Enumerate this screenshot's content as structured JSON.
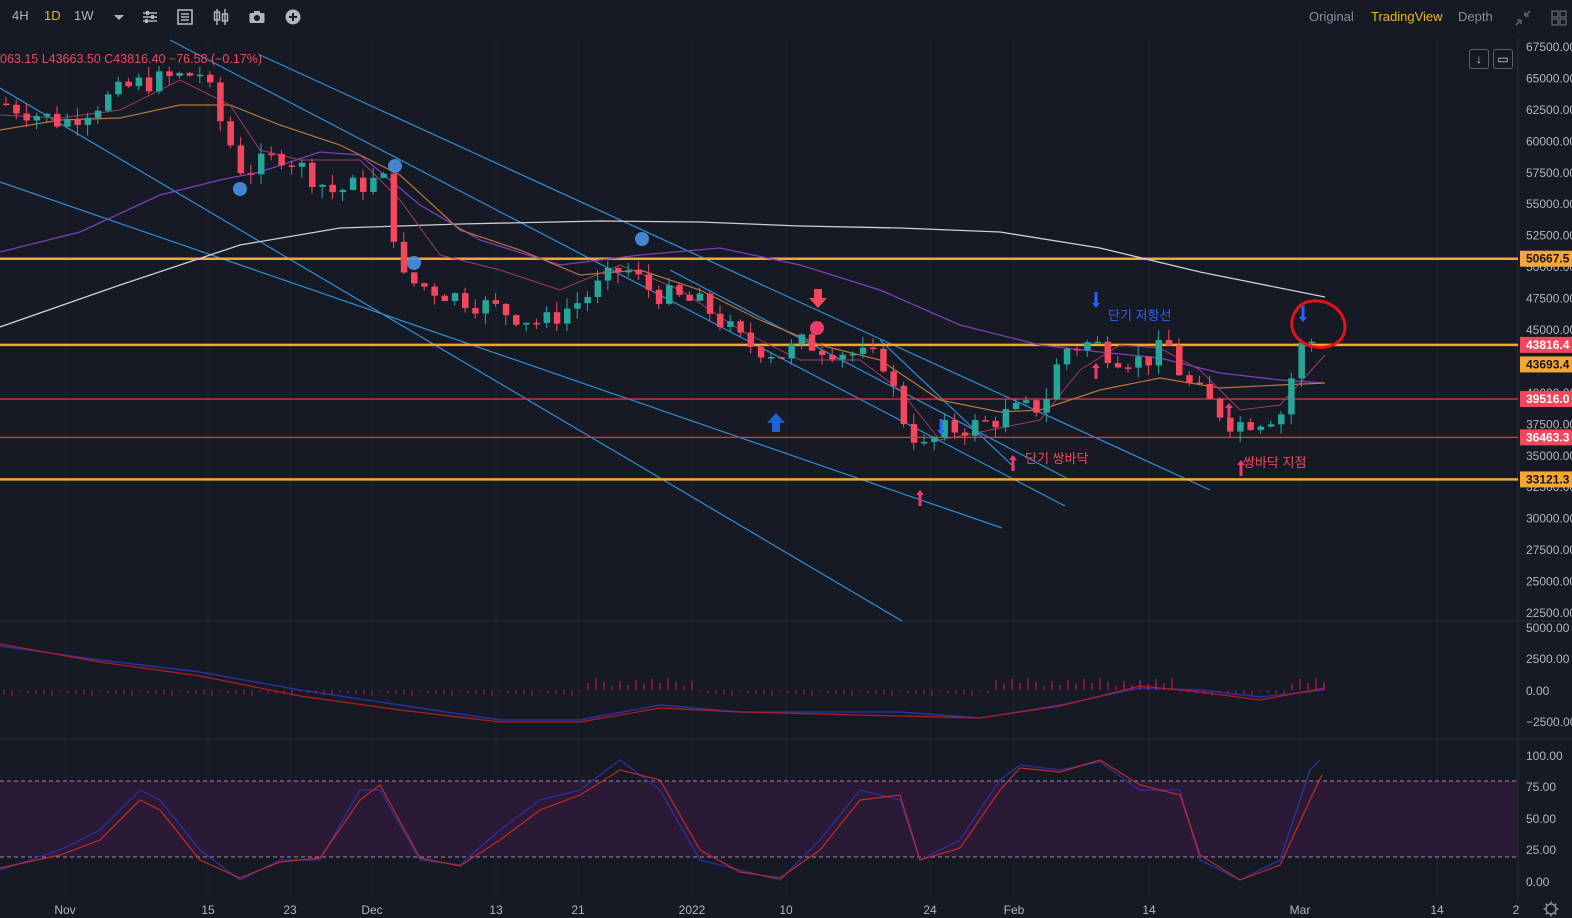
{
  "toolbar": {
    "intervals": [
      {
        "label": "4H",
        "active": false
      },
      {
        "label": "1D",
        "active": true
      },
      {
        "label": "1W",
        "active": false
      }
    ],
    "more_intervals_icon": "chevron-down-icon",
    "tool_icons": [
      "sliders-icon",
      "indicators-icon",
      "candle-type-icon",
      "camera-icon",
      "plus-circle-icon"
    ],
    "views": [
      {
        "label": "Original",
        "active": false
      },
      {
        "label": "TradingView",
        "active": true
      },
      {
        "label": "Depth",
        "active": false
      }
    ],
    "window_icons": [
      "collapse-icon",
      "layout-grid-icon"
    ]
  },
  "legend": {
    "ohlc_text": "063.15  L43663.50  C43816.40  −76.58 (−0.17%)"
  },
  "price_axis": {
    "ticks": [
      "67500.00",
      "65000.00",
      "62500.00",
      "60000.00",
      "57500.00",
      "55000.00",
      "52500.00",
      "50000.00",
      "47500.00",
      "45000.00",
      "42500.00",
      "40000.00",
      "37500.00",
      "35000.00",
      "32500.00",
      "30000.00",
      "27500.00",
      "25000.00",
      "22500.00"
    ],
    "labels": [
      {
        "text": "50667.5",
        "value": 50667.5,
        "bg": "#f7a634",
        "fg": "#131722"
      },
      {
        "text": "43816.4",
        "value": 43816.4,
        "bg": "#f6465d",
        "fg": "#ffffff"
      },
      {
        "text": "43693.4",
        "value": 43693.4,
        "bg": "#f7a634",
        "fg": "#131722"
      },
      {
        "text": "39516.0",
        "value": 39516.0,
        "bg": "#f6465d",
        "fg": "#ffffff"
      },
      {
        "text": "36463.3",
        "value": 36463.3,
        "bg": "#f6465d",
        "fg": "#ffffff"
      },
      {
        "text": "33121.3",
        "value": 33121.3,
        "bg": "#f7a634",
        "fg": "#131722"
      }
    ]
  },
  "macd_axis": {
    "ticks": [
      "5000.00",
      "2500.00",
      "0.00",
      "−2500.00"
    ]
  },
  "stoch_axis": {
    "ticks": [
      "100.00",
      "75.00",
      "50.00",
      "25.00",
      "0.00"
    ]
  },
  "time_axis": {
    "labels": [
      "Nov",
      "15",
      "23",
      "Dec",
      "13",
      "21",
      "2022",
      "10",
      "24",
      "Feb",
      "14",
      "Mar",
      "14",
      "2"
    ]
  },
  "annotations": [
    {
      "text": "단기 저항선",
      "color": "#2962ff"
    },
    {
      "text": "단기 쌍바닥",
      "color": "#f6465d"
    },
    {
      "text": "쌍바닥 지점",
      "color": "#f6465d"
    }
  ],
  "colors": {
    "up": "#26a69a",
    "down": "#f6465d",
    "level_orange": "#f7a634",
    "level_red": "#e03a3e",
    "trend_blue": "#2f8fd8",
    "ma_slow": "#d0d0d0",
    "ma_mid": "#7e3fb8",
    "ma_fast": "#b8763a",
    "annotation_red": "#e8111b"
  },
  "chart_data": {
    "type": "candlestick",
    "horizontal_levels": [
      50667.5,
      43816.4,
      39516.0,
      36463.3,
      33121.3
    ],
    "price_range": [
      21500,
      68000
    ]
  }
}
